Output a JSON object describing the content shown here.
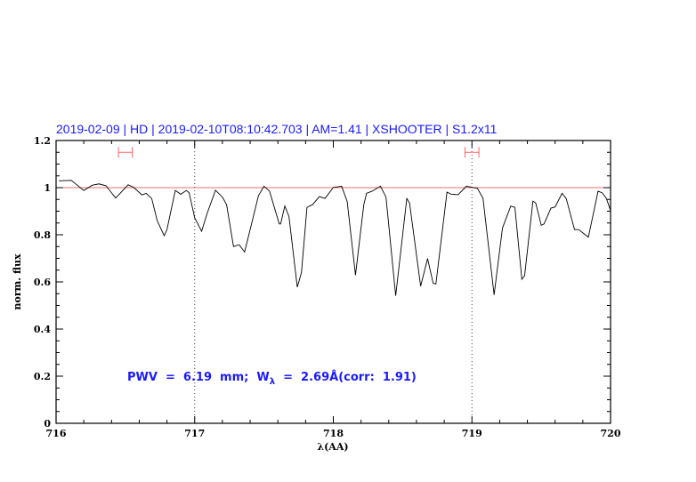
{
  "chart_data": {
    "type": "line",
    "title": "2019-02-09 | HD | 2019-02-10T08:10:42.703 | AM=1.41 | XSHOOTER | S1.2x11",
    "xlabel": "λ(AA)",
    "ylabel": "norm. flux",
    "xlim": [
      716,
      720
    ],
    "ylim": [
      0,
      1.2
    ],
    "xticks": [
      716,
      717,
      718,
      719,
      720
    ],
    "xtick_labels": [
      "716",
      "717",
      "718",
      "719",
      "720"
    ],
    "yticks": [
      0,
      0.2,
      0.4,
      0.6,
      0.8,
      1,
      1.2
    ],
    "ytick_labels": [
      "0",
      "0.2",
      "0.4",
      "0.6",
      "0.8",
      "1",
      "1.2"
    ],
    "grid": false,
    "reference_line": {
      "y": 1,
      "color": "#e87070"
    },
    "vertical_markers": [
      717,
      719
    ],
    "error_bars": [
      {
        "x": 716.5,
        "xmin": 716.45,
        "xmax": 716.55,
        "y": 1.15,
        "color": "#ff6666"
      },
      {
        "x": 719.0,
        "xmin": 718.95,
        "xmax": 719.05,
        "y": 1.15,
        "color": "#ff6666"
      }
    ],
    "annotation": {
      "prefix": "PWV  =  6.19  mm;  W",
      "subscript": "λ",
      "suffix": "  =  2.69Å(corr:  1.91)"
    },
    "series": [
      {
        "color": "#000000",
        "x": [
          716.02,
          716.11,
          716.2,
          716.26,
          716.31,
          716.36,
          716.43,
          716.52,
          716.56,
          716.62,
          716.65,
          716.69,
          716.73,
          716.78,
          716.8,
          716.86,
          716.9,
          716.94,
          716.96,
          717.0,
          717.05,
          717.09,
          717.15,
          717.2,
          717.23,
          717.28,
          717.32,
          717.36,
          717.4,
          717.46,
          717.5,
          717.54,
          717.61,
          717.62,
          717.65,
          717.68,
          717.74,
          717.77,
          717.81,
          717.85,
          717.9,
          717.94,
          718.0,
          718.06,
          718.1,
          718.16,
          718.22,
          718.24,
          718.28,
          718.34,
          718.38,
          718.45,
          718.53,
          718.55,
          718.63,
          718.68,
          718.72,
          718.74,
          718.82,
          718.85,
          718.9,
          718.96,
          719.04,
          719.08,
          719.16,
          719.22,
          719.28,
          719.31,
          719.36,
          719.38,
          719.44,
          719.46,
          719.5,
          719.52,
          719.57,
          719.6,
          719.65,
          719.68,
          719.74,
          719.77,
          719.84,
          719.91,
          719.94,
          719.97,
          720.0
        ],
        "y": [
          1.029,
          1.031,
          0.988,
          1.01,
          1.016,
          1.008,
          0.956,
          1.012,
          1.001,
          0.969,
          0.976,
          0.954,
          0.859,
          0.796,
          0.822,
          0.988,
          0.972,
          0.988,
          0.978,
          0.872,
          0.815,
          0.891,
          0.989,
          0.96,
          0.928,
          0.75,
          0.758,
          0.727,
          0.822,
          0.966,
          1.006,
          0.985,
          0.846,
          0.846,
          0.922,
          0.878,
          0.578,
          0.639,
          0.916,
          0.928,
          0.962,
          0.954,
          1.001,
          1.006,
          0.941,
          0.629,
          0.928,
          0.976,
          0.985,
          1.006,
          0.96,
          0.541,
          0.954,
          0.935,
          0.582,
          0.699,
          0.595,
          0.591,
          0.981,
          0.972,
          0.97,
          1.006,
          0.997,
          0.954,
          0.545,
          0.828,
          0.922,
          0.916,
          0.611,
          0.626,
          0.943,
          0.935,
          0.84,
          0.846,
          0.913,
          0.918,
          0.976,
          0.954,
          0.822,
          0.822,
          0.79,
          0.985,
          0.978,
          0.954,
          0.903
        ]
      }
    ]
  }
}
